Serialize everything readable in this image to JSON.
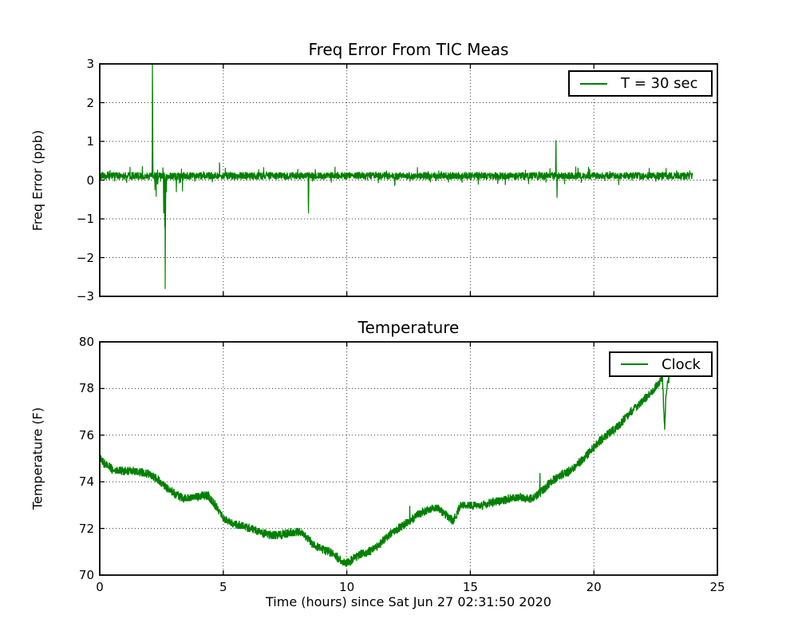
{
  "figure": {
    "background": "#ffffff",
    "axis_color": "#000000",
    "grid_color": "#333333",
    "line_color": "#008000"
  },
  "chart_data": [
    {
      "type": "line",
      "title": "Freq Error From TIC Meas",
      "ylabel": "Freq Error (ppb)",
      "xlabel": "",
      "legend": {
        "label": "T = 30 sec",
        "position": "upper right"
      },
      "xlim": [
        0,
        25
      ],
      "ylim": [
        -3,
        3
      ],
      "xticks": [
        0,
        5,
        10,
        15,
        20,
        25
      ],
      "yticks": [
        3,
        2,
        1,
        0,
        -1,
        -2,
        -3
      ],
      "ytick_labels": [
        "3",
        "2",
        "1",
        "0",
        "−1",
        "−2",
        "−3"
      ],
      "grid": true,
      "grid_style": "dotted",
      "legend_position": "upper right",
      "series": [
        {
          "name": "T = 30 sec",
          "color": "#008000",
          "t_start": 0,
          "t_end": 24.0,
          "sample_step_hours": 0.008333,
          "baseline": 0.11,
          "noise_amplitude": 0.09,
          "notes": "flat noisy trace near +0.1 ppb; spike at t≈2.13 clipped above +3",
          "spikes": [
            [
              2.125,
              0.8
            ],
            [
              2.133,
              3.6
            ],
            [
              2.142,
              2.2
            ],
            [
              2.15,
              0.5
            ],
            [
              2.233,
              -0.25
            ],
            [
              2.283,
              -0.42
            ],
            [
              2.333,
              -0.1
            ],
            [
              2.583,
              -0.55
            ],
            [
              2.592,
              -0.85
            ],
            [
              2.6,
              -0.3
            ],
            [
              2.633,
              -1.2
            ],
            [
              2.65,
              -2.8
            ],
            [
              2.658,
              -1.4
            ],
            [
              2.667,
              -0.55
            ],
            [
              2.7,
              -0.3
            ],
            [
              3.1,
              -0.3
            ],
            [
              3.35,
              -0.28
            ],
            [
              4.85,
              0.45
            ],
            [
              8.442,
              -0.55
            ],
            [
              8.45,
              -0.85
            ],
            [
              8.458,
              -0.35
            ],
            [
              18.458,
              0.7
            ],
            [
              18.467,
              1.02
            ],
            [
              18.475,
              0.45
            ],
            [
              18.508,
              -0.45
            ],
            [
              18.517,
              -0.15
            ]
          ]
        }
      ]
    },
    {
      "type": "line",
      "title": "Temperature",
      "ylabel": "Temperature (F)",
      "xlabel": "Time (hours) since Sat Jun 27 02:31:50 2020",
      "legend": {
        "label": "Clock",
        "position": "upper right"
      },
      "xlim": [
        0,
        25
      ],
      "ylim": [
        70,
        80
      ],
      "xticks": [
        0,
        5,
        10,
        15,
        20,
        25
      ],
      "xtick_labels": [
        "0",
        "5",
        "10",
        "15",
        "20",
        "25"
      ],
      "yticks": [
        80,
        78,
        76,
        74,
        72,
        70
      ],
      "ytick_labels": [
        "80",
        "78",
        "76",
        "74",
        "72",
        "70"
      ],
      "grid": true,
      "grid_style": "dotted",
      "legend_position": "upper right",
      "series": [
        {
          "name": "Clock",
          "color": "#008000",
          "t_start": 0,
          "t_end": 23.05,
          "sample_step_hours": 0.008333,
          "noise_amplitude": 0.17,
          "quantize_step": 0.0625,
          "keypoints": [
            [
              0,
              75.0
            ],
            [
              0.15,
              74.8
            ],
            [
              0.5,
              74.55
            ],
            [
              1.0,
              74.45
            ],
            [
              1.5,
              74.45
            ],
            [
              2.0,
              74.35
            ],
            [
              2.3,
              74.15
            ],
            [
              2.6,
              73.85
            ],
            [
              3.0,
              73.5
            ],
            [
              3.4,
              73.3
            ],
            [
              3.8,
              73.3
            ],
            [
              4.1,
              73.4
            ],
            [
              4.4,
              73.4
            ],
            [
              4.7,
              72.95
            ],
            [
              5.0,
              72.45
            ],
            [
              5.4,
              72.2
            ],
            [
              5.8,
              72.1
            ],
            [
              6.2,
              71.95
            ],
            [
              6.6,
              71.8
            ],
            [
              7.0,
              71.7
            ],
            [
              7.4,
              71.75
            ],
            [
              7.9,
              71.85
            ],
            [
              8.2,
              71.8
            ],
            [
              8.6,
              71.35
            ],
            [
              9.0,
              71.1
            ],
            [
              9.4,
              70.95
            ],
            [
              9.8,
              70.6
            ],
            [
              10.0,
              70.5
            ],
            [
              10.3,
              70.75
            ],
            [
              10.7,
              70.95
            ],
            [
              11.0,
              71.05
            ],
            [
              11.4,
              71.4
            ],
            [
              11.8,
              71.8
            ],
            [
              12.1,
              72.0
            ],
            [
              12.5,
              72.3
            ],
            [
              12.9,
              72.6
            ],
            [
              13.3,
              72.8
            ],
            [
              13.6,
              72.9
            ],
            [
              14.0,
              72.6
            ],
            [
              14.3,
              72.3
            ],
            [
              14.6,
              72.95
            ],
            [
              15.0,
              73.0
            ],
            [
              15.5,
              73.0
            ],
            [
              16.0,
              73.15
            ],
            [
              16.5,
              73.25
            ],
            [
              17.0,
              73.35
            ],
            [
              17.5,
              73.25
            ],
            [
              17.9,
              73.6
            ],
            [
              18.3,
              74.05
            ],
            [
              18.7,
              74.3
            ],
            [
              19.1,
              74.5
            ],
            [
              19.5,
              74.9
            ],
            [
              20.0,
              75.5
            ],
            [
              20.5,
              76.0
            ],
            [
              21.0,
              76.4
            ],
            [
              21.5,
              77.0
            ],
            [
              22.0,
              77.5
            ],
            [
              22.4,
              77.9
            ],
            [
              22.7,
              78.35
            ],
            [
              22.78,
              78.45
            ],
            [
              22.83,
              77.0
            ],
            [
              22.87,
              76.3
            ],
            [
              22.92,
              77.8
            ],
            [
              22.98,
              78.25
            ],
            [
              23.05,
              78.45
            ]
          ],
          "spikes": [
            [
              12.55,
              72.95
            ],
            [
              17.817,
              74.35
            ]
          ]
        }
      ]
    }
  ]
}
